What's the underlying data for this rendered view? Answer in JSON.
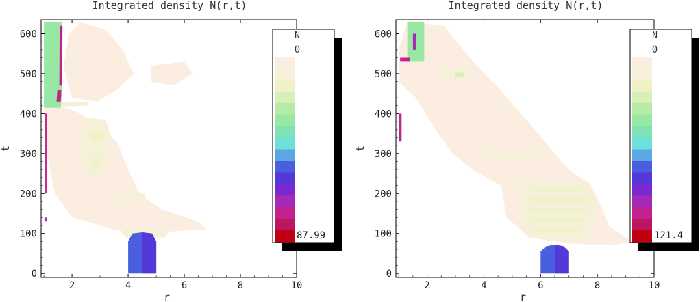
{
  "chart_data": [
    {
      "type": "heatmap",
      "title": "Integrated density N(r,t)",
      "xlabel": "r",
      "ylabel": "t",
      "xlim": [
        0.9,
        10
      ],
      "ylim": [
        -10,
        635
      ],
      "xticks": [
        "2",
        "4",
        "6",
        "8",
        "10"
      ],
      "yticks": [
        "0",
        "100",
        "200",
        "300",
        "400",
        "500",
        "600"
      ],
      "legend": {
        "title": "N",
        "min_label": "0",
        "max_label": "87.99",
        "max": 87.99,
        "placement": "right"
      },
      "regions": [
        {
          "level": 1,
          "points": [
            [
              1.0,
              420
            ],
            [
              1.6,
              420
            ],
            [
              2.3,
              400
            ],
            [
              3.0,
              360
            ],
            [
              3.6,
              330
            ],
            [
              4.0,
              260
            ],
            [
              4.4,
              200
            ],
            [
              5.2,
              160
            ],
            [
              6.5,
              130
            ],
            [
              6.8,
              110
            ],
            [
              5.5,
              105
            ],
            [
              3.5,
              110
            ],
            [
              2.0,
              140
            ],
            [
              1.4,
              200
            ],
            [
              1.1,
              300
            ],
            [
              1.0,
              350
            ]
          ]
        },
        {
          "level": 1,
          "points": [
            [
              2.3,
              630
            ],
            [
              3.2,
              610
            ],
            [
              3.8,
              560
            ],
            [
              4.2,
              500
            ],
            [
              3.6,
              460
            ],
            [
              2.9,
              430
            ],
            [
              2.0,
              440
            ],
            [
              1.7,
              520
            ],
            [
              1.9,
              600
            ]
          ]
        },
        {
          "level": 1,
          "points": [
            [
              4.8,
              520
            ],
            [
              6.0,
              530
            ],
            [
              6.3,
              500
            ],
            [
              5.6,
              470
            ],
            [
              4.8,
              480
            ]
          ]
        },
        {
          "level": 2,
          "points": [
            [
              2.4,
              390
            ],
            [
              3.2,
              385
            ],
            [
              3.4,
              340
            ],
            [
              3.3,
              300
            ],
            [
              3.1,
              250
            ],
            [
              2.7,
              240
            ],
            [
              2.4,
              270
            ],
            [
              2.3,
              330
            ]
          ]
        },
        {
          "level": 2,
          "points": [
            [
              3.6,
              200
            ],
            [
              4.6,
              200
            ],
            [
              4.6,
              178
            ],
            [
              3.6,
              176
            ]
          ]
        },
        {
          "level": 2,
          "points": [
            [
              1.4,
              430
            ],
            [
              2.6,
              428
            ],
            [
              2.6,
              420
            ],
            [
              1.5,
              418
            ]
          ]
        },
        {
          "level": 3,
          "points": [
            [
              2.6,
              360
            ],
            [
              3.1,
              355
            ],
            [
              3.1,
              330
            ],
            [
              2.7,
              330
            ]
          ]
        },
        {
          "level": 3,
          "points": [
            [
              2.7,
              290
            ],
            [
              3.0,
              290
            ],
            [
              3.0,
              260
            ],
            [
              2.7,
              260
            ]
          ]
        },
        {
          "level": 2,
          "points": [
            [
              3.7,
              110
            ],
            [
              5.5,
              110
            ],
            [
              5.3,
              90
            ],
            [
              3.9,
              90
            ]
          ]
        },
        {
          "level": 10,
          "points": [
            [
              4.0,
              0
            ],
            [
              5.0,
              0
            ],
            [
              5.0,
              80
            ],
            [
              4.85,
              100
            ],
            [
              4.5,
              103
            ],
            [
              4.15,
              100
            ],
            [
              4.0,
              80
            ]
          ]
        },
        {
          "level": 11,
          "points": [
            [
              4.5,
              0
            ],
            [
              5.0,
              0
            ],
            [
              5.0,
              80
            ],
            [
              4.85,
              100
            ],
            [
              4.5,
              103
            ]
          ]
        },
        {
          "level": 6,
          "points": [
            [
              1.0,
              415
            ],
            [
              1.6,
              415
            ],
            [
              1.65,
              460
            ],
            [
              1.65,
              560
            ],
            [
              1.65,
              630
            ],
            [
              1.0,
              630
            ]
          ]
        },
        {
          "level": 13,
          "points": [
            [
              1.02,
              130
            ],
            [
              1.1,
              130
            ],
            [
              1.1,
              140
            ],
            [
              1.02,
              140
            ]
          ]
        },
        {
          "level": 14,
          "points": [
            [
              1.05,
              200
            ],
            [
              1.12,
              200
            ],
            [
              1.12,
              400
            ],
            [
              1.05,
              400
            ]
          ]
        },
        {
          "level": 14,
          "points": [
            [
              1.45,
              430
            ],
            [
              1.6,
              430
            ],
            [
              1.62,
              460
            ],
            [
              1.48,
              460
            ]
          ]
        },
        {
          "level": 14,
          "points": [
            [
              1.55,
              470
            ],
            [
              1.65,
              470
            ],
            [
              1.66,
              620
            ],
            [
              1.56,
              620
            ]
          ]
        }
      ]
    },
    {
      "type": "heatmap",
      "title": "Integrated density N(r,t)",
      "xlabel": "r",
      "ylabel": "t",
      "xlim": [
        0.9,
        10
      ],
      "ylim": [
        -10,
        635
      ],
      "xticks": [
        "2",
        "4",
        "6",
        "8",
        "10"
      ],
      "yticks": [
        "0",
        "100",
        "200",
        "300",
        "400",
        "500",
        "600"
      ],
      "legend": {
        "title": "N",
        "min_label": "0",
        "max_label": "121.4",
        "max": 121.4,
        "placement": "right"
      },
      "regions": [
        {
          "level": 1,
          "points": [
            [
              1.3,
              630
            ],
            [
              2.6,
              620
            ],
            [
              3.5,
              540
            ],
            [
              4.7,
              450
            ],
            [
              5.8,
              360
            ],
            [
              6.5,
              300
            ],
            [
              7.0,
              260
            ],
            [
              7.6,
              230
            ],
            [
              8.0,
              190
            ],
            [
              8.4,
              120
            ],
            [
              9.2,
              80
            ],
            [
              8.5,
              70
            ],
            [
              7.0,
              75
            ],
            [
              5.6,
              90
            ],
            [
              4.8,
              140
            ],
            [
              4.6,
              220
            ],
            [
              3.6,
              260
            ],
            [
              2.9,
              300
            ],
            [
              2.3,
              360
            ],
            [
              1.6,
              440
            ],
            [
              1.0,
              480
            ],
            [
              1.0,
              560
            ]
          ]
        },
        {
          "level": 2,
          "points": [
            [
              5.4,
              230
            ],
            [
              7.7,
              230
            ],
            [
              7.9,
              200
            ],
            [
              7.9,
              120
            ],
            [
              7.5,
              85
            ],
            [
              6.6,
              80
            ],
            [
              5.6,
              90
            ],
            [
              5.3,
              140
            ]
          ]
        },
        {
          "level": 2,
          "points": [
            [
              2.3,
              520
            ],
            [
              3.4,
              510
            ],
            [
              3.5,
              485
            ],
            [
              2.6,
              480
            ]
          ]
        },
        {
          "level": 2,
          "points": [
            [
              4.2,
              300
            ],
            [
              5.8,
              300
            ],
            [
              5.8,
              285
            ],
            [
              4.2,
              285
            ]
          ]
        },
        {
          "level": 3,
          "points": [
            [
              5.7,
              215
            ],
            [
              7.4,
              215
            ],
            [
              7.4,
              205
            ],
            [
              5.7,
              205
            ]
          ]
        },
        {
          "level": 3,
          "points": [
            [
              5.6,
              190
            ],
            [
              7.6,
              190
            ],
            [
              7.6,
              180
            ],
            [
              5.6,
              180
            ]
          ]
        },
        {
          "level": 3,
          "points": [
            [
              5.6,
              165
            ],
            [
              7.6,
              165
            ],
            [
              7.6,
              155
            ],
            [
              5.6,
              155
            ]
          ]
        },
        {
          "level": 3,
          "points": [
            [
              5.7,
              140
            ],
            [
              7.5,
              140
            ],
            [
              7.5,
              130
            ],
            [
              5.7,
              130
            ]
          ]
        },
        {
          "level": 3,
          "points": [
            [
              5.8,
              115
            ],
            [
              7.4,
              115
            ],
            [
              7.4,
              105
            ],
            [
              5.8,
              105
            ]
          ]
        },
        {
          "level": 4,
          "points": [
            [
              3.0,
              502
            ],
            [
              3.3,
              502
            ],
            [
              3.3,
              492
            ],
            [
              3.0,
              492
            ]
          ]
        },
        {
          "level": 10,
          "points": [
            [
              6.0,
              0
            ],
            [
              7.0,
              0
            ],
            [
              7.0,
              55
            ],
            [
              6.8,
              68
            ],
            [
              6.5,
              72
            ],
            [
              6.2,
              68
            ],
            [
              6.0,
              55
            ]
          ]
        },
        {
          "level": 11,
          "points": [
            [
              6.5,
              0
            ],
            [
              7.0,
              0
            ],
            [
              7.0,
              55
            ],
            [
              6.8,
              68
            ],
            [
              6.5,
              72
            ]
          ]
        },
        {
          "level": 6,
          "points": [
            [
              1.3,
              530
            ],
            [
              1.9,
              530
            ],
            [
              1.9,
              630
            ],
            [
              1.3,
              630
            ]
          ]
        },
        {
          "level": 14,
          "points": [
            [
              1.0,
              330
            ],
            [
              1.1,
              330
            ],
            [
              1.1,
              400
            ],
            [
              1.0,
              400
            ]
          ]
        },
        {
          "level": 14,
          "points": [
            [
              1.05,
              530
            ],
            [
              1.4,
              530
            ],
            [
              1.4,
              540
            ],
            [
              1.05,
              540
            ]
          ]
        },
        {
          "level": 13,
          "points": [
            [
              1.5,
              560
            ],
            [
              1.6,
              560
            ],
            [
              1.6,
              600
            ],
            [
              1.5,
              600
            ]
          ]
        }
      ]
    }
  ],
  "palette": [
    "#ffffff",
    "#fbede0",
    "#f5f1d8",
    "#eef2c6",
    "#d7f0b8",
    "#b5eba6",
    "#98e7a3",
    "#80e0b6",
    "#6ee0da",
    "#5aa7e2",
    "#4a5fe0",
    "#5538d8",
    "#7a28cf",
    "#a52ab8",
    "#c1228f",
    "#be1560",
    "#c00010"
  ]
}
